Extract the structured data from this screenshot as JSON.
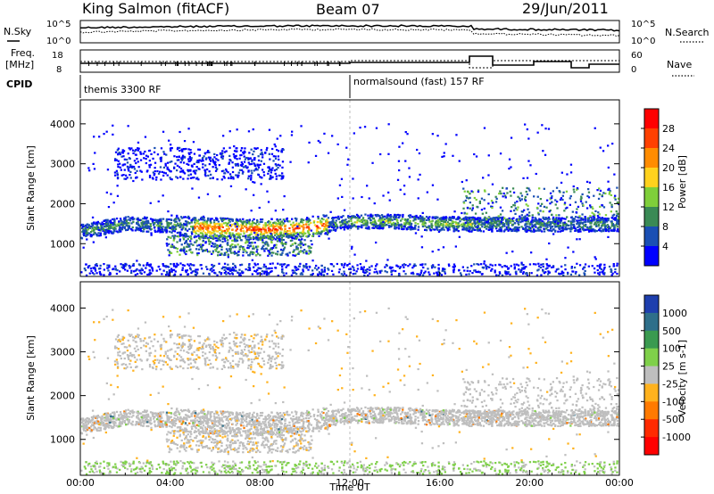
{
  "header": {
    "station": "King Salmon (fitACF)",
    "beam": "Beam 07",
    "date": "29/Jun/2011"
  },
  "panels": {
    "nsky_label": "N.Sky",
    "nsearch_label": "N.Search",
    "nsky_ticks": [
      "10^5",
      "10^0"
    ],
    "nsearch_ticks": [
      "10^5",
      "10^0"
    ],
    "freq_label_1": "Freq.",
    "freq_label_2": "[MHz]",
    "freq_ticks": [
      "18",
      "8"
    ],
    "nave_label": "Nave",
    "nave_ticks": [
      "60",
      "0"
    ],
    "cpid_label": "CPID",
    "cpid_segments": [
      "themis 3300 RF",
      "normalsound (fast) 157 RF"
    ]
  },
  "chart_data": [
    {
      "type": "heatmap",
      "title": "",
      "ylabel": "Slant Range [km]",
      "xlabel": "",
      "ylim": [
        180,
        4600
      ],
      "yticks": [
        1000,
        2000,
        3000,
        4000
      ],
      "colorbar_label": "Power [dB]",
      "colorbar_ticks": [
        28,
        24,
        20,
        16,
        12,
        8,
        4
      ],
      "colorbar_colors": [
        "#ff0000",
        "#ff4000",
        "#ff8c00",
        "#ffd21e",
        "#7fcf3a",
        "#3a8a55",
        "#1a4fb4",
        "#0000ff"
      ],
      "features": [
        {
          "name": "main band",
          "t": [
            0,
            2,
            4,
            6,
            8,
            10,
            12,
            14,
            16,
            17.5
          ],
          "r": [
            1300,
            1500,
            1450,
            1380,
            1350,
            1400,
            1550,
            1550,
            1500,
            1480
          ],
          "level": "strong"
        },
        {
          "name": "upper patches",
          "t": [
            2,
            4,
            6,
            8
          ],
          "r": [
            3100,
            3000,
            2950,
            2900
          ],
          "level": "weak"
        }
      ]
    },
    {
      "type": "heatmap",
      "title": "",
      "ylabel": "Slant Range [km]",
      "xlabel": "Time UT",
      "ylim": [
        180,
        4600
      ],
      "yticks": [
        1000,
        2000,
        3000,
        4000
      ],
      "xticks": [
        "00:00",
        "04:00",
        "08:00",
        "12:00",
        "16:00",
        "20:00",
        "00:00"
      ],
      "colorbar_label": "Velocity [m s-1]",
      "colorbar_ticks": [
        1000,
        500,
        100,
        25,
        -25,
        -100,
        -500,
        -1000
      ],
      "colorbar_colors": [
        "#1e3fae",
        "#2e6f8a",
        "#3a9a50",
        "#7fd04a",
        "#bebebe",
        "#ffb21e",
        "#ff7a00",
        "#ff2a00",
        "#ff0000"
      ]
    }
  ]
}
